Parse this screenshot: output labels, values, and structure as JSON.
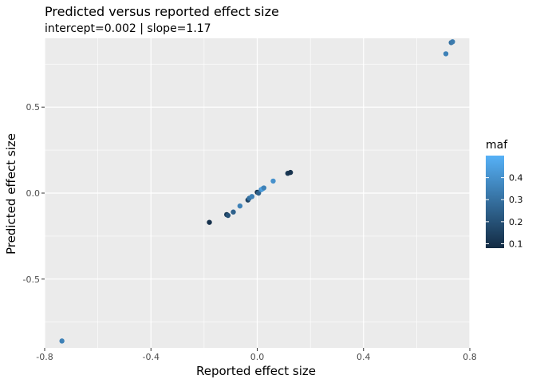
{
  "chart_data": {
    "type": "scatter",
    "title": "Predicted versus reported effect size",
    "subtitle": "intercept=0.002 | slope=1.17",
    "xlabel": "Reported effect size",
    "ylabel": "Predicted effect size",
    "xlim": [
      -0.8,
      0.8
    ],
    "ylim": [
      -0.9,
      0.9
    ],
    "x_ticks": [
      -0.8,
      -0.4,
      0.0,
      0.4,
      0.8
    ],
    "x_tick_labels": [
      "-0.8",
      "-0.4",
      "0.0",
      "0.4",
      "0.8"
    ],
    "y_ticks": [
      -0.5,
      0.0,
      0.5
    ],
    "y_tick_labels": [
      "-0.5",
      "0.0",
      "0.5"
    ],
    "grid": true,
    "legend": {
      "title": "maf",
      "placement": "right",
      "type": "colorbar",
      "range": [
        0.08,
        0.5
      ],
      "ticks": [
        0.1,
        0.2,
        0.3,
        0.4
      ],
      "tick_labels": [
        "0.1",
        "0.2",
        "0.3",
        "0.4"
      ],
      "color_low": "#132B43",
      "color_high": "#56B1F7"
    },
    "points": [
      {
        "x": -0.735,
        "y": -0.86,
        "maf": 0.35
      },
      {
        "x": -0.18,
        "y": -0.17,
        "maf": 0.1
      },
      {
        "x": -0.115,
        "y": -0.125,
        "maf": 0.12
      },
      {
        "x": -0.11,
        "y": -0.13,
        "maf": 0.2
      },
      {
        "x": -0.09,
        "y": -0.11,
        "maf": 0.25
      },
      {
        "x": -0.065,
        "y": -0.075,
        "maf": 0.35
      },
      {
        "x": -0.035,
        "y": -0.04,
        "maf": 0.15
      },
      {
        "x": -0.03,
        "y": -0.03,
        "maf": 0.3
      },
      {
        "x": -0.02,
        "y": -0.02,
        "maf": 0.35
      },
      {
        "x": 0.0,
        "y": 0.005,
        "maf": 0.12
      },
      {
        "x": 0.005,
        "y": 0.0,
        "maf": 0.25
      },
      {
        "x": 0.015,
        "y": 0.02,
        "maf": 0.4
      },
      {
        "x": 0.02,
        "y": 0.025,
        "maf": 0.45
      },
      {
        "x": 0.025,
        "y": 0.03,
        "maf": 0.35
      },
      {
        "x": 0.06,
        "y": 0.07,
        "maf": 0.4
      },
      {
        "x": 0.115,
        "y": 0.115,
        "maf": 0.12
      },
      {
        "x": 0.125,
        "y": 0.12,
        "maf": 0.1
      },
      {
        "x": 0.71,
        "y": 0.81,
        "maf": 0.35
      },
      {
        "x": 0.73,
        "y": 0.875,
        "maf": 0.3
      },
      {
        "x": 0.735,
        "y": 0.88,
        "maf": 0.33
      }
    ]
  }
}
